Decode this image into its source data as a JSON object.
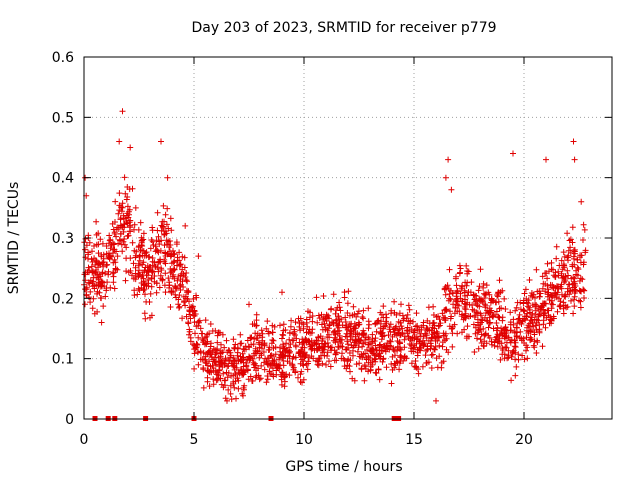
{
  "chart_data": {
    "type": "scatter",
    "title": "Day 203 of 2023, SRMTID for receiver p779",
    "xlabel": "GPS time / hours",
    "ylabel": "SRMTID / TECUs",
    "xlim": [
      0,
      24
    ],
    "ylim": [
      0,
      0.6
    ],
    "xticks": [
      0,
      5,
      10,
      15,
      20
    ],
    "yticks": [
      0,
      0.1,
      0.2,
      0.3,
      0.4,
      0.5,
      0.6
    ],
    "xtick_labels": [
      "0",
      "5",
      "10",
      "15",
      "20"
    ],
    "ytick_labels": [
      "0",
      "0.1",
      "0.2",
      "0.3",
      "0.4",
      "0.5",
      "0.6"
    ],
    "grid": true,
    "marker": "plus",
    "color": "#e00000",
    "data_range_hours": [
      0,
      22.8
    ],
    "trend_hours": [
      0,
      1,
      1.5,
      2,
      2.5,
      3,
      3.5,
      4,
      4.5,
      5,
      5.5,
      6,
      6.5,
      7,
      8,
      9,
      10,
      11,
      12,
      13,
      14,
      15,
      16,
      16.5,
      17,
      18,
      19,
      19.5,
      20,
      20.5,
      21,
      21.5,
      22,
      22.8
    ],
    "trend_srmtid": [
      0.25,
      0.24,
      0.3,
      0.32,
      0.26,
      0.24,
      0.28,
      0.26,
      0.22,
      0.15,
      0.11,
      0.09,
      0.085,
      0.085,
      0.11,
      0.1,
      0.12,
      0.14,
      0.14,
      0.12,
      0.13,
      0.13,
      0.13,
      0.17,
      0.2,
      0.18,
      0.16,
      0.13,
      0.16,
      0.17,
      0.2,
      0.22,
      0.23,
      0.25
    ],
    "gap_markers_hours": [
      0.5,
      1.1,
      1.4,
      2.8,
      5.0,
      8.5,
      14.1,
      14.3
    ],
    "sample_points": [
      [
        0.05,
        0.4
      ],
      [
        0.1,
        0.37
      ],
      [
        0.2,
        0.3
      ],
      [
        0.4,
        0.22
      ],
      [
        0.8,
        0.16
      ],
      [
        1.6,
        0.46
      ],
      [
        1.75,
        0.51
      ],
      [
        2.1,
        0.45
      ],
      [
        3.5,
        0.46
      ],
      [
        3.8,
        0.4
      ],
      [
        4.6,
        0.32
      ],
      [
        5.2,
        0.27
      ],
      [
        6.5,
        0.03
      ],
      [
        7.5,
        0.19
      ],
      [
        9.0,
        0.21
      ],
      [
        16.45,
        0.4
      ],
      [
        16.55,
        0.43
      ],
      [
        16.7,
        0.38
      ],
      [
        19.5,
        0.44
      ],
      [
        21.0,
        0.43
      ],
      [
        22.25,
        0.46
      ],
      [
        22.3,
        0.43
      ],
      [
        22.6,
        0.36
      ],
      [
        16.0,
        0.03
      ]
    ],
    "estimated_noise_amplitude": 0.045,
    "estimated_point_count": 2200
  }
}
